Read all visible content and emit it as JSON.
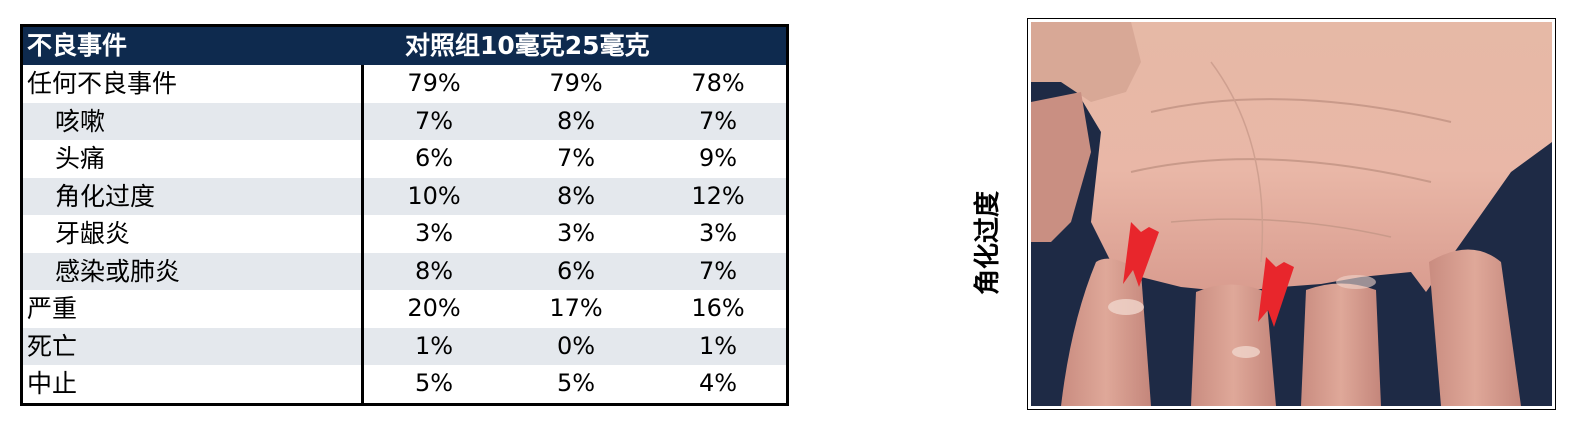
{
  "table": {
    "header": {
      "first": "不良事件",
      "groups": "对照组10毫克25毫克"
    },
    "rows": [
      {
        "label": "任何不良事件",
        "values": [
          "79%",
          "79%",
          "78%"
        ]
      },
      {
        "label": "咳嗽",
        "values": [
          "7%",
          "8%",
          "7%"
        ]
      },
      {
        "label": "头痛",
        "values": [
          "6%",
          "7%",
          "9%"
        ]
      },
      {
        "label": "角化过度",
        "values": [
          "10%",
          "8%",
          "12%"
        ]
      },
      {
        "label": "牙龈炎",
        "values": [
          "3%",
          "3%",
          "3%"
        ]
      },
      {
        "label": "感染或肺炎",
        "values": [
          "8%",
          "6%",
          "7%"
        ]
      },
      {
        "label": "严重",
        "values": [
          "20%",
          "17%",
          "16%"
        ]
      },
      {
        "label": "死亡",
        "values": [
          "1%",
          "0%",
          "1%"
        ]
      },
      {
        "label": "中止",
        "values": [
          "5%",
          "5%",
          "4%"
        ]
      }
    ]
  },
  "photo": {
    "side_label": "角化过度"
  },
  "colors": {
    "header_bg": "#0e2a4e",
    "header_text": "#ffffff",
    "row_shaded": "#e4e8ed",
    "arrow": "#e8262c"
  }
}
